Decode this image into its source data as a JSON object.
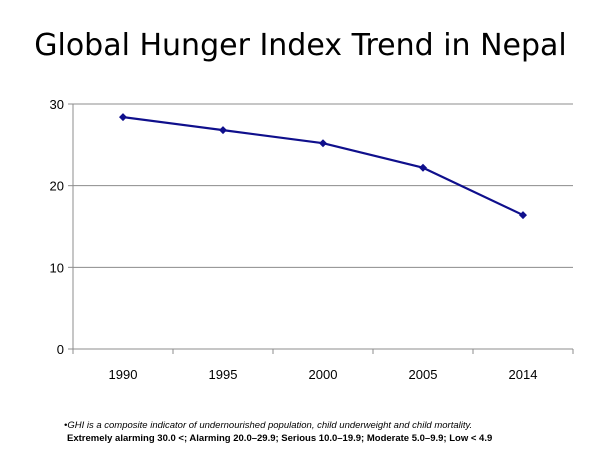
{
  "page": {
    "title": "Global Hunger Index Trend in Nepal",
    "footnote_note": "•GHI is a composite indicator of undernourished population, child underweight and child mortality.",
    "footnote_scale": "Extremely alarming 30.0 <; Alarming 20.0–29.9; Serious 10.0–19.9; Moderate 5.0–9.9; Low < 4.9"
  },
  "chart_data": {
    "type": "line",
    "title": "Global Hunger Index Trend in Nepal",
    "xlabel": "",
    "ylabel": "",
    "categories": [
      "1990",
      "1995",
      "2000",
      "2005",
      "2014"
    ],
    "series": [
      {
        "values": [
          28.4,
          26.8,
          25.2,
          22.2,
          16.4
        ]
      }
    ],
    "ylim": [
      0,
      30
    ],
    "yticks": [
      0,
      10,
      20,
      30
    ],
    "grid": true,
    "legend": "none",
    "colors": {
      "line": "#0f0f8c",
      "grid": "#8c8c8c",
      "axis": "#8c8c8c"
    },
    "marker": "diamond"
  }
}
